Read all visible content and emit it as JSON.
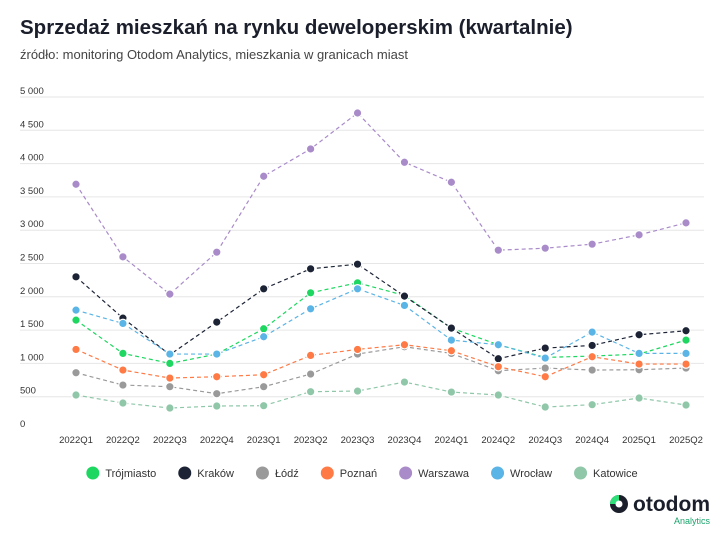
{
  "chart_data": {
    "type": "line",
    "title": "Sprzedaż mieszkań na rynku deweloperskim (kwartalnie)",
    "subtitle": "źródło: monitoring Otodom Analytics, mieszkania w granicach miast",
    "xlabel": "",
    "ylabel": "",
    "ylim": [
      0,
      5000
    ],
    "yticks": [
      0,
      500,
      1000,
      1500,
      2000,
      2500,
      3000,
      3500,
      4000,
      4500,
      5000
    ],
    "ytick_labels": [
      "0",
      "500",
      "1 000",
      "1 500",
      "2 000",
      "2 500",
      "3 000",
      "3 500",
      "4 000",
      "4 500",
      "5 000"
    ],
    "grid": true,
    "legend_placement": "bottom",
    "categories": [
      "2022Q1",
      "2022Q2",
      "2022Q3",
      "2022Q4",
      "2023Q1",
      "2023Q2",
      "2023Q3",
      "2023Q4",
      "2024Q1",
      "2024Q2",
      "2024Q3",
      "2024Q4",
      "2025Q1",
      "2025Q2"
    ],
    "series": [
      {
        "name": "Trójmiasto",
        "color": "#1ed760",
        "values": [
          1650,
          1150,
          1000,
          1140,
          1520,
          2060,
          2210,
          2020,
          1530,
          1280,
          1090,
          1110,
          1140,
          1350
        ]
      },
      {
        "name": "Kraków",
        "color": "#1b2335",
        "values": [
          2300,
          1680,
          1130,
          1620,
          2120,
          2420,
          2490,
          2010,
          1530,
          1070,
          1230,
          1270,
          1430,
          1490
        ]
      },
      {
        "name": "Łódź",
        "color": "#9a9a9a",
        "values": [
          860,
          675,
          650,
          545,
          650,
          840,
          1140,
          1250,
          1150,
          890,
          930,
          900,
          905,
          930
        ]
      },
      {
        "name": "Poznań",
        "color": "#ff7a45",
        "values": [
          1210,
          900,
          780,
          800,
          830,
          1120,
          1210,
          1280,
          1190,
          950,
          800,
          1100,
          990,
          990
        ]
      },
      {
        "name": "Warszawa",
        "color": "#a98bc9",
        "values": [
          3690,
          2600,
          2040,
          2670,
          3810,
          4220,
          4760,
          4020,
          3720,
          2700,
          2730,
          2790,
          2930,
          3110
        ]
      },
      {
        "name": "Wrocław",
        "color": "#5ab4e5",
        "values": [
          1800,
          1600,
          1140,
          1140,
          1400,
          1820,
          2120,
          1870,
          1350,
          1280,
          1080,
          1470,
          1150,
          1150
        ]
      },
      {
        "name": "Katowice",
        "color": "#8fc7a8",
        "values": [
          525,
          405,
          330,
          360,
          365,
          575,
          585,
          720,
          570,
          525,
          345,
          380,
          480,
          375
        ]
      }
    ]
  },
  "logo": {
    "name": "otodom",
    "sub": "Analytics"
  }
}
